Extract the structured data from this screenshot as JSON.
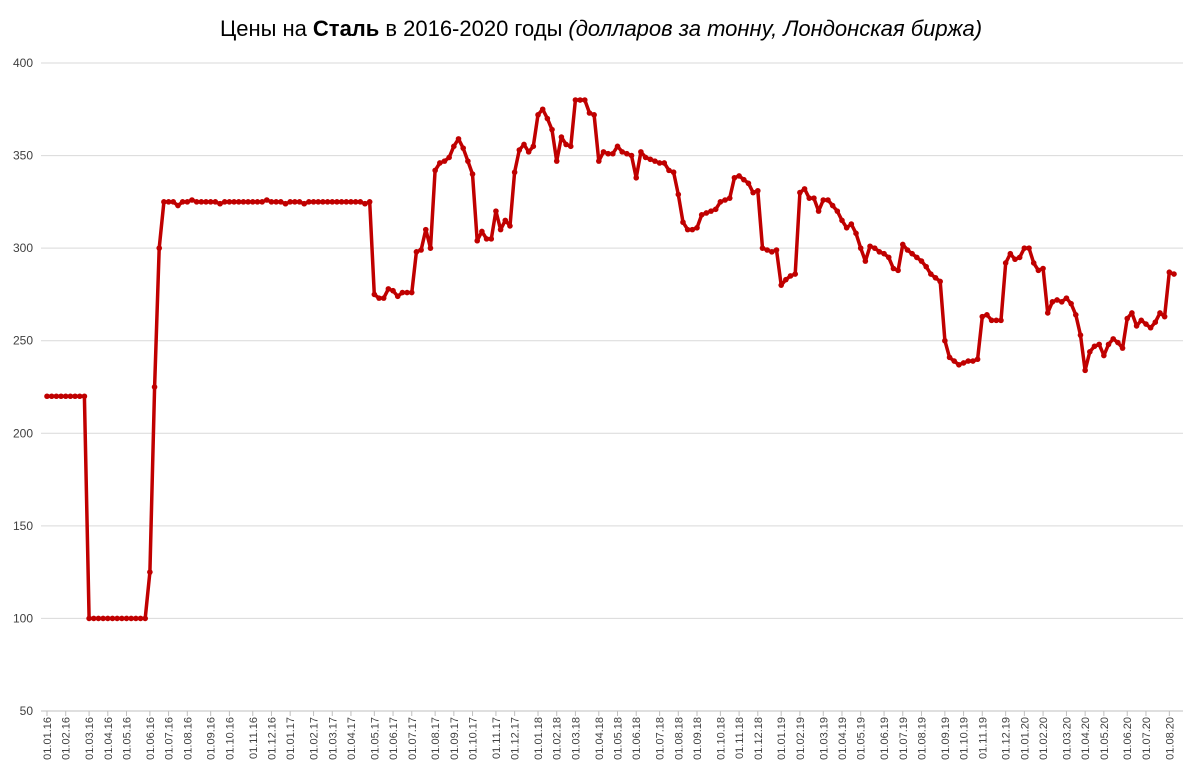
{
  "chart_data": {
    "type": "line",
    "title": [
      "Цены на",
      "Сталь",
      "в 2016-2020 годы",
      "(долларов за тонну, Лондонская биржа)"
    ],
    "categories": [
      "01.01.16",
      null,
      null,
      null,
      "01.02.16",
      null,
      null,
      null,
      null,
      "01.03.16",
      null,
      null,
      null,
      "01.04.16",
      null,
      null,
      null,
      "01.05.16",
      null,
      null,
      null,
      null,
      "01.06.16",
      null,
      null,
      null,
      "01.07.16",
      null,
      null,
      null,
      "01.08.16",
      null,
      null,
      null,
      null,
      "01.09.16",
      null,
      null,
      null,
      "01.10.16",
      null,
      null,
      null,
      null,
      "01.11.16",
      null,
      null,
      null,
      "01.12.16",
      null,
      null,
      null,
      "01.01.17",
      null,
      null,
      null,
      null,
      "01.02.17",
      null,
      null,
      null,
      "01.03.17",
      null,
      null,
      null,
      "01.04.17",
      null,
      null,
      null,
      null,
      "01.05.17",
      null,
      null,
      null,
      "01.06.17",
      null,
      null,
      null,
      "01.07.17",
      null,
      null,
      null,
      null,
      "01.08.17",
      null,
      null,
      null,
      "01.09.17",
      null,
      null,
      null,
      "01.10.17",
      null,
      null,
      null,
      null,
      "01.11.17",
      null,
      null,
      null,
      "01.12.17",
      null,
      null,
      null,
      null,
      "01.01.18",
      null,
      null,
      null,
      "01.02.18",
      null,
      null,
      null,
      "01.03.18",
      null,
      null,
      null,
      null,
      "01.04.18",
      null,
      null,
      null,
      "01.05.18",
      null,
      null,
      null,
      "01.06.18",
      null,
      null,
      null,
      null,
      "01.07.18",
      null,
      null,
      null,
      "01.08.18",
      null,
      null,
      null,
      "01.09.18",
      null,
      null,
      null,
      null,
      "01.10.18",
      null,
      null,
      null,
      "01.11.18",
      null,
      null,
      null,
      "01.12.18",
      null,
      null,
      null,
      null,
      "01.01.19",
      null,
      null,
      null,
      "01.02.19",
      null,
      null,
      null,
      null,
      "01.03.19",
      null,
      null,
      null,
      "01.04.19",
      null,
      null,
      null,
      "01.05.19",
      null,
      null,
      null,
      null,
      "01.06.19",
      null,
      null,
      null,
      "01.07.19",
      null,
      null,
      null,
      "01.08.19",
      null,
      null,
      null,
      null,
      "01.09.19",
      null,
      null,
      null,
      "01.10.19",
      null,
      null,
      null,
      "01.11.19",
      null,
      null,
      null,
      null,
      "01.12.19",
      null,
      null,
      null,
      "01.01.20",
      null,
      null,
      null,
      "01.02.20",
      null,
      null,
      null,
      null,
      "01.03.20",
      null,
      null,
      null,
      "01.04.20",
      null,
      null,
      null,
      "01.05.20",
      null,
      null,
      null,
      null,
      "01.06.20",
      null,
      null,
      null,
      "01.07.20",
      null,
      null,
      null,
      null,
      "01.08.20",
      null
    ],
    "values": [
      220,
      220,
      220,
      220,
      220,
      220,
      220,
      220,
      220,
      100,
      100,
      100,
      100,
      100,
      100,
      100,
      100,
      100,
      100,
      100,
      100,
      100,
      125,
      225,
      300,
      325,
      325,
      325,
      323,
      325,
      325,
      326,
      325,
      325,
      325,
      325,
      325,
      324,
      325,
      325,
      325,
      325,
      325,
      325,
      325,
      325,
      325,
      326,
      325,
      325,
      325,
      324,
      325,
      325,
      325,
      324,
      325,
      325,
      325,
      325,
      325,
      325,
      325,
      325,
      325,
      325,
      325,
      325,
      324,
      325,
      275,
      273,
      273,
      278,
      277,
      274,
      276,
      276,
      276,
      298,
      299,
      310,
      300,
      342,
      346,
      347,
      349,
      355,
      359,
      354,
      347,
      340,
      304,
      309,
      305,
      305,
      320,
      310,
      315,
      312,
      341,
      353,
      356,
      352,
      355,
      372,
      375,
      370,
      364,
      347,
      360,
      356,
      355,
      380,
      380,
      380,
      373,
      372,
      347,
      352,
      351,
      351,
      355,
      352,
      351,
      350,
      338,
      352,
      349,
      348,
      347,
      346,
      346,
      342,
      341,
      329,
      314,
      310,
      310,
      311,
      318,
      319,
      320,
      321,
      325,
      326,
      327,
      338,
      339,
      337,
      335,
      330,
      331,
      300,
      299,
      298,
      299,
      280,
      283,
      285,
      286,
      330,
      332,
      327,
      327,
      320,
      326,
      326,
      323,
      320,
      315,
      311,
      313,
      308,
      300,
      293,
      301,
      300,
      298,
      297,
      295,
      289,
      288,
      302,
      299,
      297,
      295,
      293,
      290,
      286,
      284,
      282,
      250,
      241,
      239,
      237,
      238,
      239,
      239,
      240,
      263,
      264,
      261,
      261,
      261,
      292,
      297,
      294,
      295,
      300,
      300,
      292,
      288,
      289,
      265,
      271,
      272,
      271,
      273,
      270,
      264,
      253,
      234,
      244,
      247,
      248,
      242,
      248,
      251,
      249,
      246,
      262,
      265,
      258,
      261,
      259,
      257,
      260,
      265,
      263,
      287,
      286
    ],
    "color": "#c00000",
    "ylim": [
      50,
      400
    ],
    "yticks": [
      50,
      100,
      150,
      200,
      250,
      300,
      350,
      400
    ],
    "grid": true
  }
}
